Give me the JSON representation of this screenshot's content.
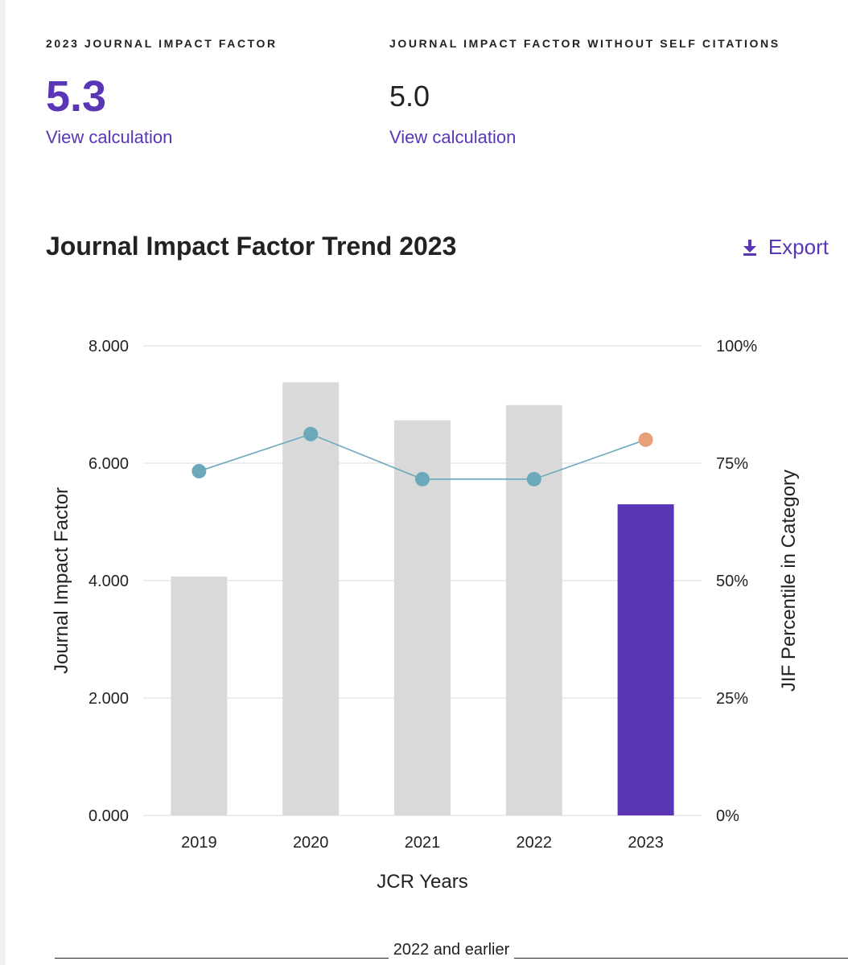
{
  "metrics": {
    "jif": {
      "label": "2023 JOURNAL IMPACT FACTOR",
      "value": "5.3",
      "link": "View calculation"
    },
    "jif_no_self": {
      "label": "JOURNAL IMPACT FACTOR WITHOUT SELF CITATIONS",
      "value": "5.0",
      "link": "View calculation"
    }
  },
  "trend": {
    "title": "Journal Impact Factor Trend 2023",
    "export_label": "Export",
    "export_icon": "download-icon"
  },
  "chart_data": {
    "type": "bar",
    "categories": [
      "2019",
      "2020",
      "2021",
      "2022",
      "2023"
    ],
    "series": [
      {
        "name": "Journal Impact Factor",
        "values": [
          4.07,
          7.38,
          6.73,
          6.99,
          5.3
        ],
        "axis": "left"
      },
      {
        "name": "JIF Percentile in Category",
        "type": "line",
        "values": [
          73.3,
          81.2,
          71.6,
          71.6,
          80
        ],
        "axis": "right"
      }
    ],
    "colors": {
      "bar": "#d9d9d9",
      "bar_current": "#5a35b6",
      "line": "#6aa8ba",
      "point_current": "#e8a07a"
    },
    "xlabel": "JCR Years",
    "ylabel": "Journal Impact Factor",
    "y2label": "JIF Percentile in Category",
    "ylim": [
      0,
      8
    ],
    "y2lim": [
      0,
      100
    ],
    "yticks": [
      "0.000",
      "2.000",
      "4.000",
      "6.000",
      "8.000"
    ],
    "y2ticks": [
      "0%",
      "25%",
      "50%",
      "75%",
      "100%"
    ],
    "grid": true
  },
  "footer": {
    "divider_text": "2022 and earlier"
  }
}
